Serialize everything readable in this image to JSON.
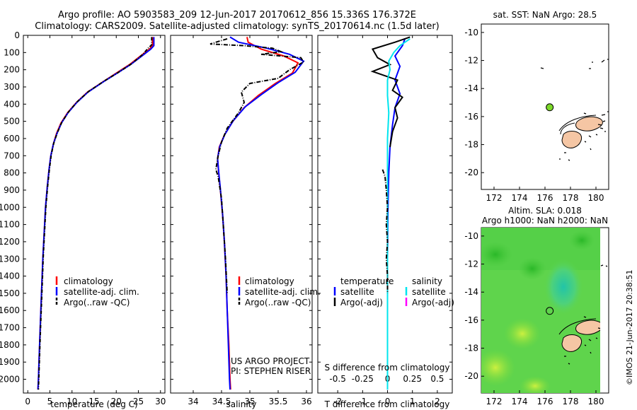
{
  "header": {
    "line1": "Argo profile: AO 5903583_209 12-Jun-2017 20170612_856 15.336S 176.372E",
    "line2": "Climatology: CARS2009. Satellite-adjusted climatology: synTS_20170614.nc (1.5d later)"
  },
  "colors": {
    "climatology": "#ff0000",
    "satellite": "#0000ff",
    "argo": "#000000",
    "sat_salinity": "#00e5ee",
    "argo_adj_salinity": "#ff00ff",
    "land": "#f5c6a4",
    "float_marker": "#7cd82a"
  },
  "chart_data": [
    {
      "type": "line",
      "id": "temperature",
      "xlabel": "temperature (deg C)",
      "xlim": [
        -1,
        31
      ],
      "xticks": [
        0,
        5,
        10,
        15,
        20,
        25,
        30
      ],
      "ylim": [
        0,
        2080
      ],
      "yticks": [
        0,
        100,
        200,
        300,
        400,
        500,
        600,
        700,
        800,
        900,
        1000,
        1100,
        1200,
        1300,
        1400,
        1500,
        1600,
        1700,
        1800,
        1900,
        2000
      ],
      "legend": [
        "climatology",
        "satellite-adj. clim.",
        "Argo(..raw -QC)"
      ],
      "series": [
        {
          "name": "climatology",
          "points": [
            [
              28.2,
              10
            ],
            [
              28.2,
              60
            ],
            [
              27.5,
              80
            ],
            [
              25.5,
              120
            ],
            [
              23,
              170
            ],
            [
              20,
              220
            ],
            [
              17,
              270
            ],
            [
              13.5,
              330
            ],
            [
              11,
              390
            ],
            [
              9,
              450
            ],
            [
              7.5,
              510
            ],
            [
              6.5,
              570
            ],
            [
              5.8,
              630
            ],
            [
              5.2,
              700
            ],
            [
              4.8,
              780
            ],
            [
              4.4,
              880
            ],
            [
              4.0,
              1000
            ],
            [
              3.7,
              1150
            ],
            [
              3.4,
              1300
            ],
            [
              3.1,
              1500
            ],
            [
              2.8,
              1700
            ],
            [
              2.6,
              1850
            ],
            [
              2.4,
              2000
            ],
            [
              2.3,
              2060
            ]
          ]
        },
        {
          "name": "satellite-adj. clim.",
          "points": [
            [
              28.5,
              10
            ],
            [
              28.5,
              60
            ],
            [
              27.8,
              80
            ],
            [
              25.8,
              120
            ],
            [
              23.2,
              170
            ],
            [
              20.2,
              220
            ],
            [
              17.1,
              270
            ],
            [
              13.6,
              330
            ],
            [
              11.1,
              390
            ],
            [
              9.1,
              450
            ],
            [
              7.6,
              510
            ],
            [
              6.6,
              570
            ],
            [
              5.8,
              630
            ],
            [
              5.2,
              700
            ],
            [
              4.8,
              780
            ],
            [
              4.4,
              880
            ],
            [
              4.0,
              1000
            ],
            [
              3.7,
              1150
            ],
            [
              3.4,
              1300
            ],
            [
              3.1,
              1500
            ],
            [
              2.8,
              1700
            ],
            [
              2.6,
              1850
            ],
            [
              2.4,
              2000
            ],
            [
              2.3,
              2060
            ]
          ]
        },
        {
          "name": "Argo(..raw -QC)",
          "points": [
            [
              28.0,
              10
            ],
            [
              28.0,
              55
            ],
            [
              27.2,
              75
            ],
            [
              26.0,
              110
            ],
            [
              23.5,
              165
            ],
            [
              20.5,
              215
            ],
            [
              17.3,
              265
            ],
            [
              13.8,
              325
            ],
            [
              11.2,
              385
            ],
            [
              9.2,
              445
            ],
            [
              7.7,
              505
            ],
            [
              6.7,
              565
            ],
            [
              5.9,
              625
            ],
            [
              5.3,
              695
            ],
            [
              4.9,
              775
            ],
            [
              4.5,
              875
            ],
            [
              4.1,
              995
            ],
            [
              3.8,
              1140
            ],
            [
              3.5,
              1290
            ],
            [
              3.2,
              1490
            ],
            [
              2.9,
              1690
            ],
            [
              2.7,
              1840
            ],
            [
              2.5,
              1990
            ],
            [
              2.4,
              2060
            ]
          ]
        }
      ]
    },
    {
      "type": "line",
      "id": "salinity",
      "xlabel": "salinity",
      "xlim": [
        33.6,
        36.1
      ],
      "xticks": [
        34,
        34.5,
        35,
        35.5,
        36
      ],
      "ylim": [
        0,
        2080
      ],
      "legend": [
        "climatology",
        "satellite-adj. clim.",
        "Argo(..raw -QC)"
      ],
      "annotation": [
        "US ARGO PROJECT",
        "PI: STEPHEN RISER"
      ],
      "series": [
        {
          "name": "climatology",
          "points": [
            [
              34.95,
              10
            ],
            [
              34.97,
              40
            ],
            [
              35.2,
              80
            ],
            [
              35.6,
              120
            ],
            [
              35.85,
              160
            ],
            [
              35.75,
              220
            ],
            [
              35.45,
              280
            ],
            [
              35.15,
              350
            ],
            [
              34.9,
              420
            ],
            [
              34.7,
              500
            ],
            [
              34.55,
              580
            ],
            [
              34.46,
              650
            ],
            [
              34.43,
              720
            ],
            [
              34.45,
              800
            ],
            [
              34.48,
              900
            ],
            [
              34.52,
              1050
            ],
            [
              34.55,
              1200
            ],
            [
              34.58,
              1400
            ],
            [
              34.6,
              1600
            ],
            [
              34.63,
              1800
            ],
            [
              34.65,
              2000
            ],
            [
              34.66,
              2060
            ]
          ]
        },
        {
          "name": "satellite-adj. clim.",
          "points": [
            [
              34.65,
              10
            ],
            [
              34.8,
              40
            ],
            [
              35.3,
              75
            ],
            [
              35.7,
              110
            ],
            [
              35.95,
              150
            ],
            [
              35.8,
              215
            ],
            [
              35.5,
              275
            ],
            [
              35.2,
              345
            ],
            [
              34.92,
              415
            ],
            [
              34.71,
              495
            ],
            [
              34.56,
              575
            ],
            [
              34.47,
              645
            ],
            [
              34.43,
              715
            ],
            [
              34.45,
              795
            ],
            [
              34.48,
              895
            ],
            [
              34.52,
              1045
            ],
            [
              34.55,
              1195
            ],
            [
              34.58,
              1395
            ],
            [
              34.6,
              1595
            ],
            [
              34.62,
              1795
            ],
            [
              34.64,
              1995
            ],
            [
              34.65,
              2060
            ]
          ]
        },
        {
          "name": "Argo(..raw -QC)",
          "points": [
            [
              34.6,
              20
            ],
            [
              34.3,
              50
            ],
            [
              34.9,
              60
            ],
            [
              35.4,
              75
            ],
            [
              35.55,
              95
            ],
            [
              35.2,
              110
            ],
            [
              35.9,
              130
            ],
            [
              35.95,
              155
            ],
            [
              35.7,
              200
            ],
            [
              35.5,
              250
            ],
            [
              35.0,
              280
            ],
            [
              34.85,
              330
            ],
            [
              34.9,
              390
            ],
            [
              34.8,
              450
            ],
            [
              34.6,
              540
            ],
            [
              34.5,
              620
            ],
            [
              34.44,
              700
            ],
            [
              34.4,
              780
            ],
            [
              34.44,
              820
            ],
            [
              34.5,
              950
            ],
            [
              34.53,
              1100
            ],
            [
              34.57,
              1300
            ],
            [
              34.6,
              1500
            ]
          ]
        }
      ]
    },
    {
      "type": "line",
      "id": "difference",
      "xlabel": "T difference from climatology",
      "xlabel2": "S difference from climatology",
      "xlim": [
        -2.8,
        2.6
      ],
      "xticks": [
        -2,
        -1,
        0,
        1,
        2
      ],
      "xticks2": [
        -0.5,
        -0.25,
        0,
        0.25,
        0.5
      ],
      "ylim": [
        0,
        2080
      ],
      "legend_title_left": "temperature",
      "legend_title_right": "salinity",
      "legend": [
        "satellite",
        "Argo(-adj)",
        "satellite",
        "Argo(-adj)"
      ],
      "series": [
        {
          "name": "temperature satellite",
          "points": [
            [
              0.7,
              20
            ],
            [
              0.6,
              60
            ],
            [
              0.3,
              120
            ],
            [
              0.5,
              180
            ],
            [
              0.3,
              260
            ],
            [
              0.5,
              340
            ],
            [
              0.3,
              420
            ],
            [
              0.2,
              520
            ],
            [
              0.1,
              650
            ],
            [
              0.05,
              800
            ],
            [
              0.02,
              1000
            ],
            [
              0,
              1300
            ],
            [
              0,
              1600
            ],
            [
              0,
              1900
            ],
            [
              0,
              2060
            ]
          ]
        },
        {
          "name": "temperature Argo(-adj)",
          "points": [
            [
              0.9,
              10
            ],
            [
              0.3,
              40
            ],
            [
              -0.6,
              80
            ],
            [
              -0.4,
              130
            ],
            [
              0.1,
              170
            ],
            [
              -0.6,
              210
            ],
            [
              0.4,
              260
            ],
            [
              0.2,
              320
            ],
            [
              0.6,
              360
            ],
            [
              0.3,
              420
            ],
            [
              0.4,
              480
            ],
            [
              0.2,
              560
            ],
            [
              0.1,
              650
            ]
          ]
        },
        {
          "name": "salinity satellite",
          "points": [
            [
              0.9,
              20
            ],
            [
              0.5,
              60
            ],
            [
              0.25,
              100
            ],
            [
              0.05,
              150
            ],
            [
              0.1,
              200
            ],
            [
              0,
              260
            ],
            [
              0,
              350
            ],
            [
              0.05,
              450
            ],
            [
              0,
              600
            ],
            [
              0,
              800
            ],
            [
              0,
              1100
            ],
            [
              0,
              1400
            ],
            [
              0,
              1700
            ],
            [
              0,
              2000
            ],
            [
              0,
              2060
            ]
          ]
        },
        {
          "name": "salinity Argo(-adj)",
          "points": [
            [
              -0.2,
              780
            ],
            [
              -0.1,
              820
            ],
            [
              -0.05,
              900
            ],
            [
              0,
              1000
            ],
            [
              -0.05,
              1100
            ],
            [
              0,
              1200
            ],
            [
              -0.05,
              1300
            ],
            [
              0,
              1400
            ],
            [
              0,
              1500
            ]
          ]
        }
      ]
    },
    {
      "type": "scatter",
      "id": "sst-map",
      "title": "sat. SST: NaN Argo: 28.5",
      "xlim": [
        171,
        181
      ],
      "ylim": [
        -21.2,
        -9.4
      ],
      "xticks": [
        172,
        174,
        176,
        178,
        180
      ],
      "yticks": [
        -10,
        -12,
        -14,
        -16,
        -18,
        -20
      ],
      "float_position": [
        176.37,
        -15.34
      ]
    },
    {
      "type": "heatmap",
      "id": "sla-map",
      "title_line1": "Altim. SLA: 0.018",
      "title_line2": "Argo h1000: NaN h2000: NaN",
      "xlim": [
        171,
        181
      ],
      "ylim": [
        -21.2,
        -9.4
      ],
      "xticks": [
        172,
        174,
        176,
        178,
        180
      ],
      "yticks": [
        -10,
        -12,
        -14,
        -16,
        -18,
        -20
      ],
      "float_position": [
        176.37,
        -15.34
      ]
    }
  ],
  "watermark": "©IMOS 21-Jun-2017 20:38:51"
}
